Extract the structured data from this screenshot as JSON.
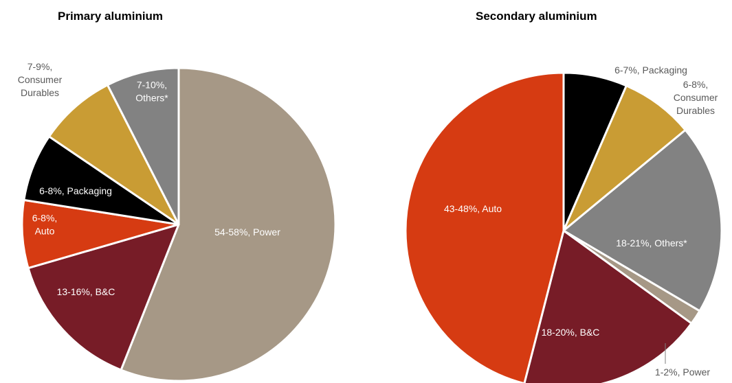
{
  "colors": {
    "power": "#a69886",
    "bc": "#771c27",
    "auto": "#d63b12",
    "packaging": "#000000",
    "consumer_durables": "#c99c34",
    "others": "#828282",
    "label_light": "#ffffff",
    "label_dark": "#595959"
  },
  "chart_data": [
    {
      "type": "pie",
      "title": "Primary aluminium",
      "slices": [
        {
          "label": "54-58%, Power",
          "value": 56,
          "color": "power"
        },
        {
          "label": "13-16%, B&C",
          "value": 14.5,
          "color": "bc"
        },
        {
          "label": "6-8%, Auto",
          "value": 7,
          "color": "auto"
        },
        {
          "label": "6-8%, Packaging",
          "value": 7,
          "color": "packaging"
        },
        {
          "label": "7-9%, Consumer Durables",
          "value": 8,
          "color": "consumer_durables"
        },
        {
          "label": "7-10%, Others*",
          "value": 7.5,
          "color": "others"
        }
      ]
    },
    {
      "type": "pie",
      "title": "Secondary aluminium",
      "slices": [
        {
          "label": "6-7%, Packaging",
          "value": 6.5,
          "color": "packaging"
        },
        {
          "label": "6-8%, Consumer Durables",
          "value": 7.5,
          "color": "consumer_durables"
        },
        {
          "label": "18-21%, Others*",
          "value": 19.5,
          "color": "others"
        },
        {
          "label": "1-2%, Power",
          "value": 1.5,
          "color": "power"
        },
        {
          "label": "18-20%, B&C",
          "value": 19,
          "color": "bc"
        },
        {
          "label": "43-48%, Auto",
          "value": 46,
          "color": "auto"
        }
      ]
    }
  ]
}
